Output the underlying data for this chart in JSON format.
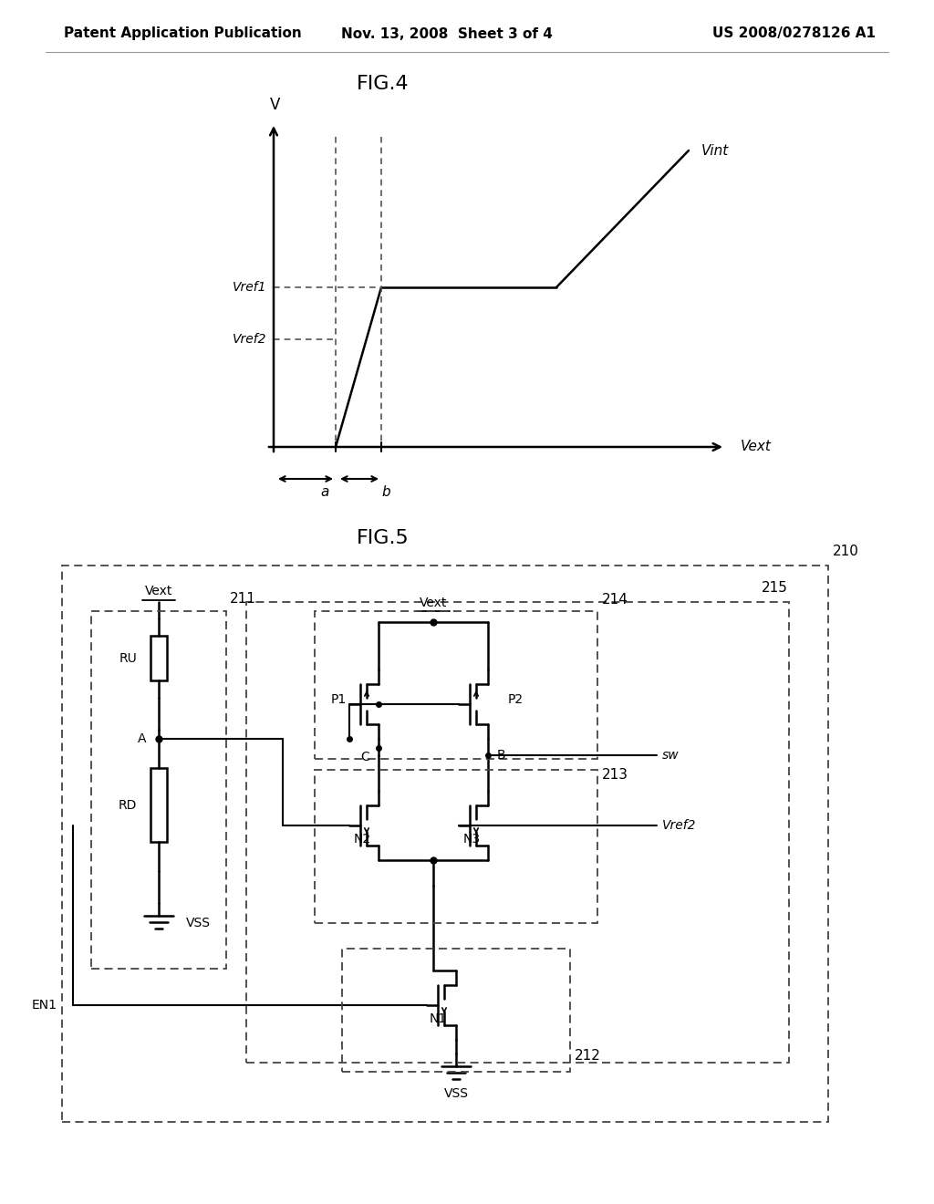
{
  "bg_color": "#ffffff",
  "line_color": "#000000",
  "header_left": "Patent Application Publication",
  "header_center": "Nov. 13, 2008  Sheet 3 of 4",
  "header_right": "US 2008/0278126 A1",
  "fig4_title": "FIG.4",
  "fig5_title": "FIG.5"
}
